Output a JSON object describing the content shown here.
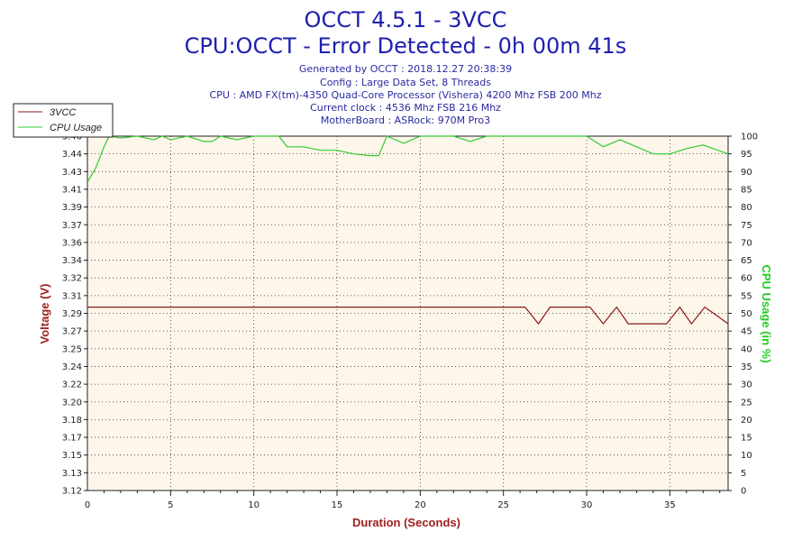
{
  "header": {
    "title_line1": "OCCT 4.5.1 - 3VCC",
    "title_line2": "CPU:OCCT - Error Detected - 0h 00m 41s",
    "info": [
      "Generated by OCCT : 2018.12.27 20:38:39",
      "Config : Large Data Set, 8 Threads",
      "CPU : AMD FX(tm)-4350 Quad-Core Processor (Vishera) 4200 Mhz FSB 200 Mhz",
      "Current clock : 4536 Mhz FSB 216 Mhz",
      "MotherBoard : ASRock: 970M Pro3"
    ]
  },
  "colors": {
    "plot_bg": "#fdf6ea",
    "grid": "#333333",
    "voltage_line": "#8b1a1a",
    "cpu_line": "#33cc33",
    "axis_label_left": "#a02020",
    "axis_label_right": "#22cc22",
    "title": "#1f1fb0"
  },
  "chart_data": {
    "type": "line",
    "xlabel": "Duration (Seconds)",
    "ylabel": "Voltage (V)",
    "y2label": "CPU Usage (in %)",
    "xlim": [
      0,
      38.5
    ],
    "ylim": [
      3.12,
      3.46
    ],
    "y2lim": [
      0,
      100
    ],
    "x_ticks": [
      "0",
      "5",
      "10",
      "15",
      "20",
      "25",
      "30",
      "35"
    ],
    "y_ticks": [
      "3.12",
      "3.13",
      "3.15",
      "3.17",
      "3.18",
      "3.20",
      "3.22",
      "3.24",
      "3.25",
      "3.27",
      "3.29",
      "3.31",
      "3.32",
      "3.34",
      "3.36",
      "3.37",
      "3.39",
      "3.41",
      "3.43",
      "3.44",
      "3.46"
    ],
    "y2_ticks": [
      "0",
      "5",
      "10",
      "15",
      "20",
      "25",
      "30",
      "35",
      "40",
      "45",
      "50",
      "55",
      "60",
      "65",
      "70",
      "75",
      "80",
      "85",
      "90",
      "95",
      "100"
    ],
    "grid": true,
    "legend_position": "top-left",
    "series": [
      {
        "name": "3VCC",
        "axis": "left",
        "x": [
          0,
          26.3,
          27.1,
          27.8,
          28.6,
          30.2,
          31.0,
          31.8,
          32.5,
          33.3,
          34.8,
          35.6,
          36.3,
          37.1,
          37.8,
          38.5
        ],
        "y": [
          3.296,
          3.296,
          3.28,
          3.296,
          3.296,
          3.296,
          3.28,
          3.296,
          3.28,
          3.28,
          3.28,
          3.296,
          3.28,
          3.296,
          3.288,
          3.28
        ]
      },
      {
        "name": "CPU Usage",
        "axis": "right",
        "x": [
          0,
          0.5,
          1.0,
          1.3,
          2,
          3,
          4,
          4.5,
          5,
          6,
          7,
          7.5,
          8,
          9,
          9.5,
          10,
          11,
          11.5,
          12,
          13,
          14,
          15,
          16,
          17,
          17.5,
          18,
          19,
          20,
          21,
          22,
          23,
          24,
          25,
          26,
          27,
          28,
          29,
          30,
          31,
          32,
          33,
          34,
          35,
          36,
          37,
          38.5
        ],
        "y": [
          87,
          91,
          97,
          100,
          99.5,
          100,
          99,
          100,
          99,
          100,
          98.5,
          98.5,
          100,
          99,
          99.5,
          100,
          100,
          100,
          97,
          97,
          96,
          96,
          95,
          94.5,
          94.5,
          100,
          98,
          100,
          100,
          100,
          98.5,
          100,
          100,
          100,
          100,
          100,
          100,
          100,
          97,
          99,
          97,
          95,
          95,
          96.5,
          97.5,
          95
        ]
      }
    ]
  }
}
